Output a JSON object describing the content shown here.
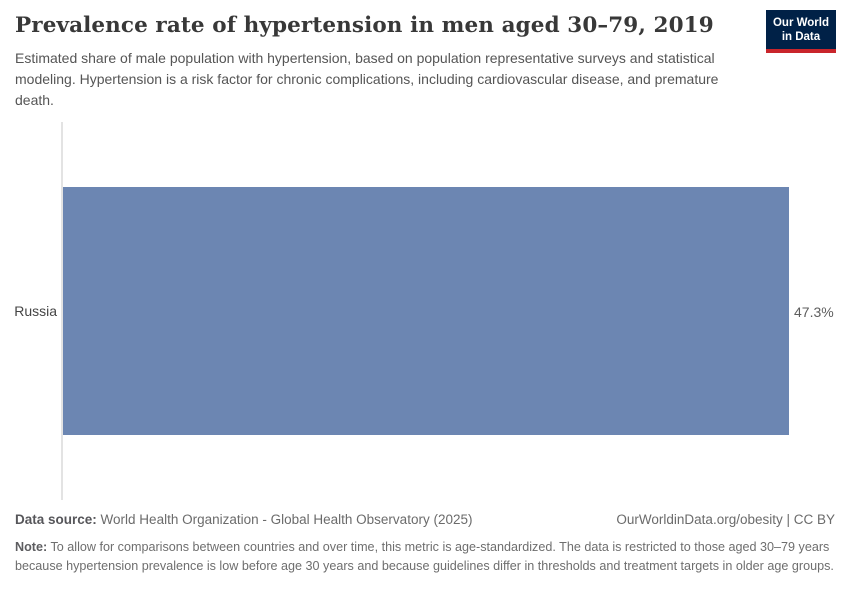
{
  "header": {
    "title": "Prevalence rate of hypertension in men aged 30–79, 2019",
    "subtitle": "Estimated share of male population with hypertension, based on population representative surveys and statistical modeling. Hypertension is a risk factor for chronic complications, including cardiovascular disease, and premature death.",
    "logo": {
      "line1": "Our World",
      "line2": "in Data",
      "bg": "#002147",
      "accent": "#c9252b"
    }
  },
  "chart_data": {
    "type": "bar",
    "orientation": "horizontal",
    "title": "Prevalence rate of hypertension in men aged 30–79, 2019",
    "categories": [
      "Russia"
    ],
    "values": [
      47.3
    ],
    "value_labels": [
      "47.3%"
    ],
    "unit": "%",
    "xlim": [
      0,
      47.3
    ],
    "grid": false,
    "legend": false,
    "bar_color": "#6c86b2",
    "axis_color": "#e3e3e3"
  },
  "footer": {
    "data_source_label": "Data source:",
    "data_source": "World Health Organization - Global Health Observatory (2025)",
    "link": "OurWorldinData.org/obesity | CC BY",
    "note_label": "Note:",
    "note": "To allow for comparisons between countries and over time, this metric is age-standardized. The data is restricted to those aged 30–79 years because hypertension prevalence is low before age 30 years and because guidelines differ in thresholds and treatment targets in older age groups."
  }
}
